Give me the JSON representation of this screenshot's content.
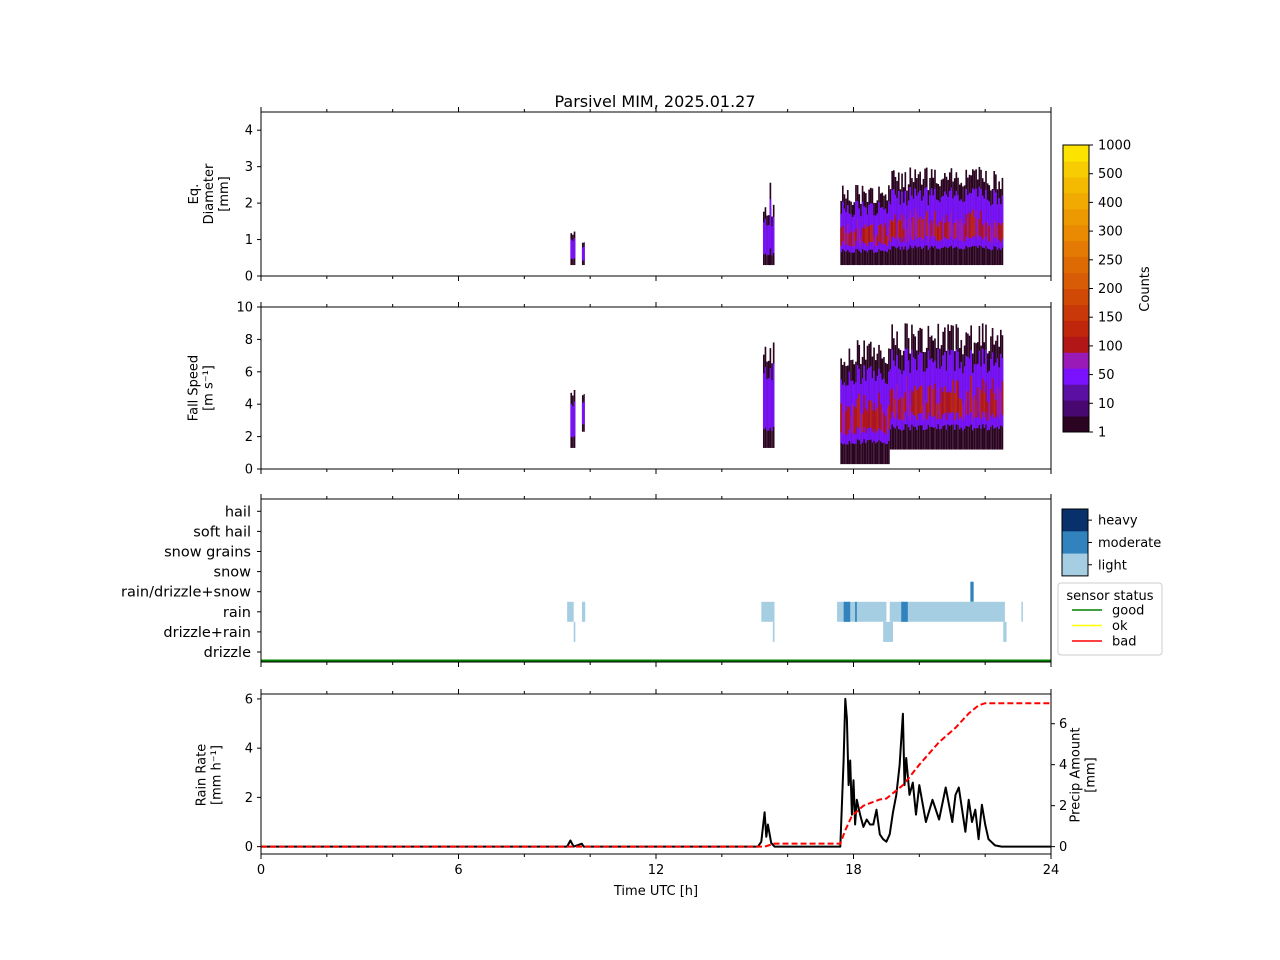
{
  "figure": {
    "title": "Parsivel MIM, 2025.01.27",
    "xlabel": "Time UTC [h]",
    "xticks": [
      "0",
      "6",
      "12",
      "18",
      "24"
    ]
  },
  "colorbar": {
    "label": "Counts",
    "ticks": [
      "1",
      "10",
      "50",
      "100",
      "150",
      "200",
      "250",
      "300",
      "400",
      "500",
      "1000"
    ],
    "colors": [
      "#2a0420",
      "#470870",
      "#5c0fa3",
      "#7a12ff",
      "#9a1ab8",
      "#b21616",
      "#c0260c",
      "#c93808",
      "#d04a06",
      "#d85c05",
      "#de6a04",
      "#e47a03",
      "#e98a02",
      "#ed9a02",
      "#f0aa02",
      "#f4ba02",
      "#f8cc02",
      "#fde400"
    ]
  },
  "precip_legend": {
    "entries": [
      "heavy",
      "moderate",
      "light"
    ],
    "colors": [
      "#08306b",
      "#3182bd",
      "#a6cee3"
    ]
  },
  "status_legend": {
    "title": "sensor status",
    "entries": [
      {
        "label": "good",
        "color": "#008000"
      },
      {
        "label": "ok",
        "color": "#ffff00"
      },
      {
        "label": "bad",
        "color": "#ff0000"
      }
    ]
  },
  "chart_data": [
    {
      "type": "heatmap",
      "name": "diameter",
      "ylabel": [
        "Eq.",
        "Diameter",
        "[mm]"
      ],
      "yticks": [
        "0",
        "1",
        "2",
        "3",
        "4"
      ],
      "ylim": [
        0,
        4.5
      ],
      "xlim": [
        0,
        24
      ],
      "blocks": [
        {
          "t0": 9.4,
          "t1": 9.55,
          "ytop": 1.25,
          "core": 0
        },
        {
          "t0": 9.75,
          "t1": 9.82,
          "ytop": 1.0,
          "core": 0
        },
        {
          "t0": 15.25,
          "t1": 15.6,
          "ytop": 2.0,
          "core": 0
        },
        {
          "t0": 15.45,
          "t1": 15.5,
          "ytop": 3.0,
          "core": 0
        },
        {
          "t0": 17.6,
          "t1": 19.1,
          "ytop": 2.5,
          "core": 1
        },
        {
          "t0": 19.1,
          "t1": 22.55,
          "ytop": 3.0,
          "core": 1
        }
      ]
    },
    {
      "type": "heatmap",
      "name": "fallspeed",
      "ylabel": [
        "Fall Speed",
        "[m s⁻¹]"
      ],
      "yticks": [
        "0",
        "2",
        "4",
        "6",
        "8",
        "10"
      ],
      "ylim": [
        0,
        10
      ],
      "xlim": [
        0,
        24
      ],
      "blocks": [
        {
          "t0": 9.4,
          "t1": 9.55,
          "ytop": 5.0,
          "ybot": 1.3,
          "core": 0
        },
        {
          "t0": 9.75,
          "t1": 9.82,
          "ytop": 5.0,
          "ybot": 2.3,
          "core": 0
        },
        {
          "t0": 15.25,
          "t1": 15.6,
          "ytop": 8.0,
          "ybot": 1.3,
          "core": 0
        },
        {
          "t0": 17.6,
          "t1": 19.1,
          "ytop": 8.0,
          "ybot": 0.3,
          "core": 1
        },
        {
          "t0": 19.1,
          "t1": 22.55,
          "ytop": 9.0,
          "ybot": 1.2,
          "core": 1
        }
      ]
    },
    {
      "type": "bar",
      "name": "precip_type",
      "categories": [
        "drizzle",
        "drizzle+rain",
        "rain",
        "rain/drizzle+snow",
        "snow",
        "snow grains",
        "soft hail",
        "hail"
      ],
      "intensity_levels": [
        "light",
        "moderate",
        "heavy"
      ],
      "events": [
        {
          "category": "rain",
          "t0": 9.3,
          "t1": 9.5,
          "intensity": "light"
        },
        {
          "category": "drizzle+rain",
          "t0": 9.5,
          "t1": 9.55,
          "intensity": "light"
        },
        {
          "category": "rain",
          "t0": 9.75,
          "t1": 9.85,
          "intensity": "light"
        },
        {
          "category": "rain",
          "t0": 15.2,
          "t1": 15.6,
          "intensity": "light"
        },
        {
          "category": "drizzle+rain",
          "t0": 15.55,
          "t1": 15.6,
          "intensity": "light"
        },
        {
          "category": "rain",
          "t0": 17.5,
          "t1": 19.0,
          "intensity": "light"
        },
        {
          "category": "rain",
          "t0": 17.7,
          "t1": 17.9,
          "intensity": "moderate"
        },
        {
          "category": "rain",
          "t0": 18.05,
          "t1": 18.1,
          "intensity": "moderate"
        },
        {
          "category": "drizzle+rain",
          "t0": 18.9,
          "t1": 19.2,
          "intensity": "light"
        },
        {
          "category": "rain",
          "t0": 19.1,
          "t1": 22.6,
          "intensity": "light"
        },
        {
          "category": "rain",
          "t0": 19.45,
          "t1": 19.65,
          "intensity": "moderate"
        },
        {
          "category": "rain/drizzle+snow",
          "t0": 21.55,
          "t1": 21.65,
          "intensity": "moderate"
        },
        {
          "category": "drizzle+rain",
          "t0": 22.55,
          "t1": 22.65,
          "intensity": "light"
        },
        {
          "category": "rain",
          "t0": 23.1,
          "t1": 23.13,
          "intensity": "light"
        }
      ],
      "sensor_status": [
        {
          "t0": 0,
          "t1": 24,
          "status": "good"
        }
      ]
    },
    {
      "type": "line",
      "name": "rain",
      "ylabel": [
        "Rain Rate",
        "[mm h⁻¹]"
      ],
      "y2label": [
        "Precip Amount",
        "[mm]"
      ],
      "yticks": [
        "0",
        "2",
        "4",
        "6"
      ],
      "y2ticks": [
        "0",
        "2",
        "4",
        "6"
      ],
      "ylim": [
        -0.3,
        6.2
      ],
      "y2lim": [
        -0.36,
        7.45
      ],
      "xlim": [
        0,
        24
      ],
      "series": [
        {
          "role": "rain_rate",
          "color": "#000000",
          "x": [
            0,
            9.3,
            9.4,
            9.5,
            9.75,
            9.8,
            9.9,
            15.1,
            15.2,
            15.3,
            15.35,
            15.4,
            15.5,
            15.6,
            17.6,
            17.7,
            17.75,
            17.8,
            17.85,
            17.9,
            17.95,
            18.0,
            18.05,
            18.1,
            18.2,
            18.3,
            18.4,
            18.5,
            18.6,
            18.7,
            18.8,
            18.9,
            19.0,
            19.1,
            19.2,
            19.3,
            19.4,
            19.5,
            19.55,
            19.6,
            19.7,
            19.8,
            19.9,
            20.0,
            20.2,
            20.4,
            20.6,
            20.8,
            21.0,
            21.1,
            21.2,
            21.3,
            21.4,
            21.5,
            21.6,
            21.7,
            21.8,
            21.9,
            22.0,
            22.1,
            22.3,
            22.5,
            23.0,
            24.0
          ],
          "y": [
            0,
            0,
            0.25,
            0,
            0.12,
            0,
            0,
            0,
            0.2,
            1.4,
            0.4,
            0.9,
            0.15,
            0,
            0,
            3.5,
            6.0,
            5.2,
            2.5,
            3.5,
            1.3,
            2.7,
            0.9,
            1.9,
            1.3,
            0.8,
            1.1,
            0.9,
            0.9,
            1.5,
            0.5,
            0.3,
            0.2,
            0.5,
            1.4,
            2.1,
            3.3,
            5.4,
            2.5,
            3.6,
            2.1,
            2.6,
            1.3,
            2.5,
            1.0,
            1.9,
            1.1,
            2.4,
            1.0,
            2.1,
            2.4,
            1.5,
            0.6,
            1.9,
            1.0,
            1.5,
            0.3,
            1.7,
            0.9,
            0.3,
            0.05,
            0,
            0,
            0
          ]
        },
        {
          "role": "precip_amount",
          "color": "#ff0000",
          "x": [
            0,
            15.3,
            15.6,
            17.6,
            17.75,
            17.95,
            18.3,
            18.8,
            19.0,
            19.5,
            19.8,
            20.0,
            20.6,
            21.1,
            21.5,
            21.8,
            22.0,
            22.4,
            24.0
          ],
          "y": [
            0,
            0,
            0.15,
            0.15,
            0.8,
            1.5,
            2.0,
            2.3,
            2.35,
            3.0,
            3.6,
            4.0,
            5.1,
            5.8,
            6.5,
            6.9,
            7.0,
            7.0,
            7.0
          ]
        }
      ]
    }
  ]
}
